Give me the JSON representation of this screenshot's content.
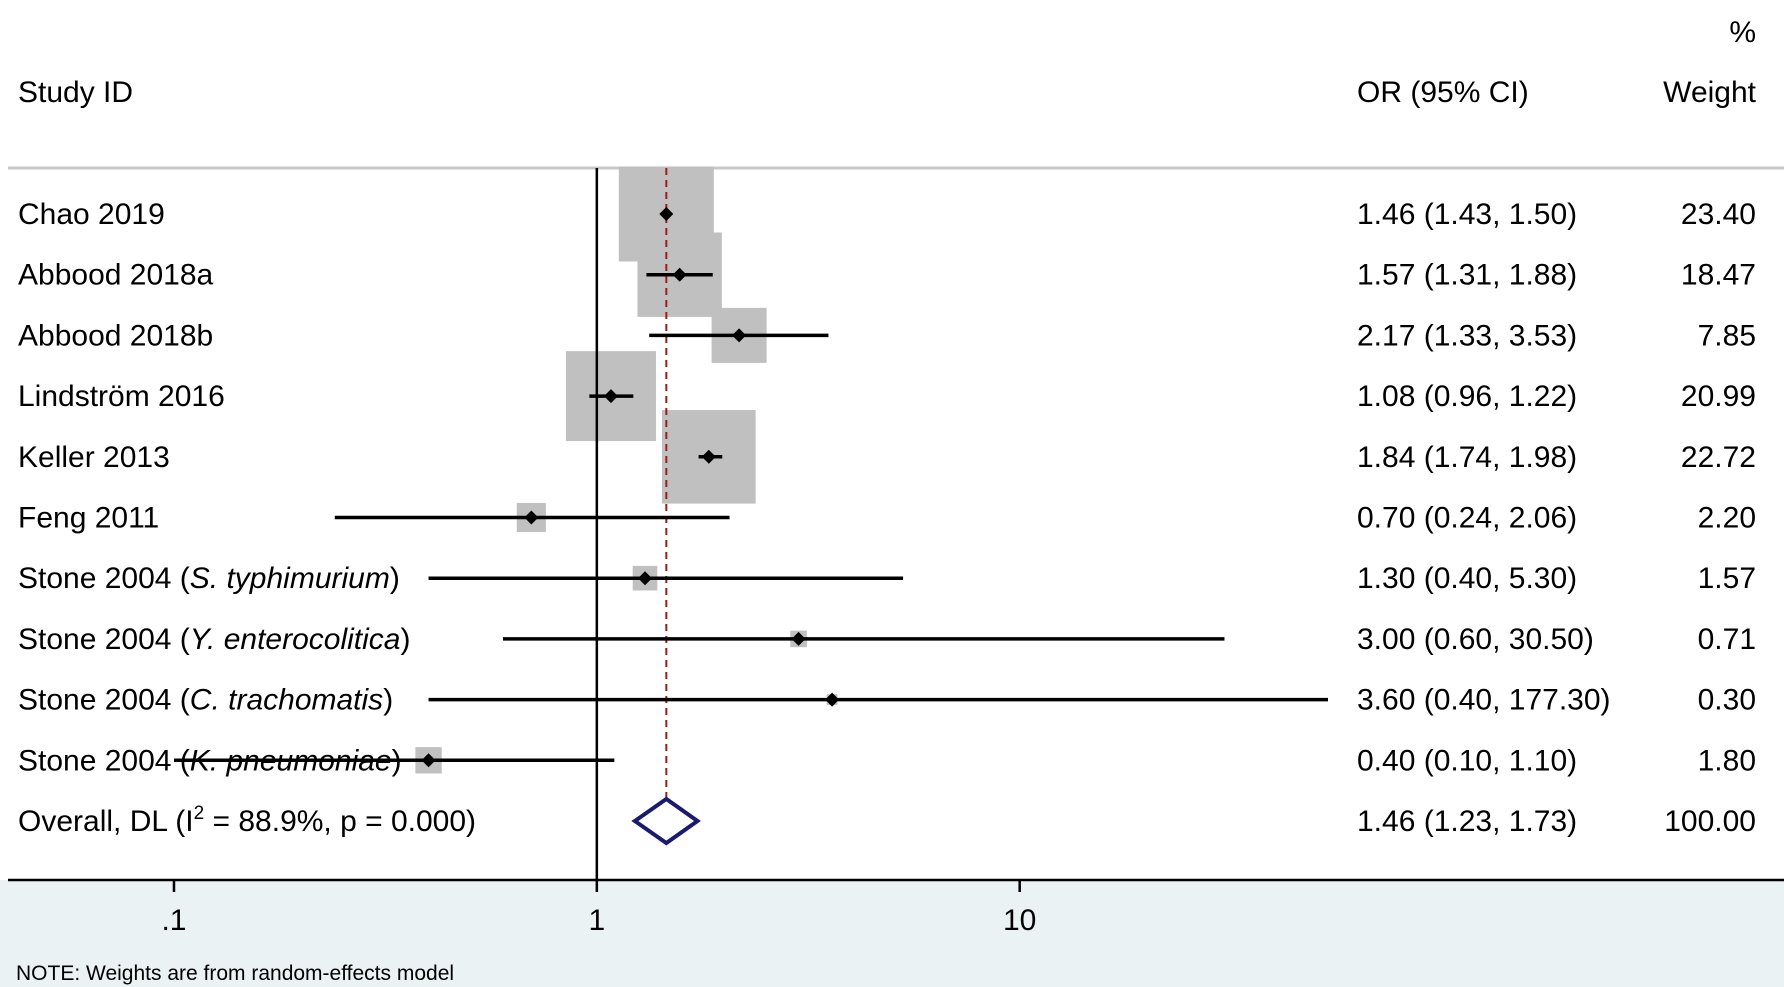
{
  "header": {
    "study_col": "Study ID",
    "or_col": "OR (95% CI)",
    "weight_pct": "%",
    "weight_col": "Weight"
  },
  "chart_data": {
    "type": "forest",
    "scale": "log",
    "xlim": [
      0.0405,
      53.6
    ],
    "null_line": 1,
    "ticks": [
      {
        "value": 0.1,
        "label": ".1"
      },
      {
        "value": 1,
        "label": "1"
      },
      {
        "value": 10,
        "label": "10"
      }
    ],
    "studies": [
      {
        "pre": "Chao 2019",
        "ital": "",
        "post": "",
        "or": 1.46,
        "lo": 1.43,
        "hi": 1.5,
        "or_text": "1.46 (1.43, 1.50)",
        "weight": "23.40",
        "w": 23.4
      },
      {
        "pre": "Abbood 2018a",
        "ital": "",
        "post": "",
        "or": 1.57,
        "lo": 1.31,
        "hi": 1.88,
        "or_text": "1.57 (1.31, 1.88)",
        "weight": "18.47",
        "w": 18.47
      },
      {
        "pre": "Abbood 2018b",
        "ital": "",
        "post": "",
        "or": 2.17,
        "lo": 1.33,
        "hi": 3.53,
        "or_text": "2.17 (1.33, 3.53)",
        "weight": "7.85",
        "w": 7.85
      },
      {
        "pre": "Lindström 2016",
        "ital": "",
        "post": "",
        "or": 1.08,
        "lo": 0.96,
        "hi": 1.22,
        "or_text": "1.08 (0.96, 1.22)",
        "weight": "20.99",
        "w": 20.99
      },
      {
        "pre": "Keller 2013",
        "ital": "",
        "post": "",
        "or": 1.84,
        "lo": 1.74,
        "hi": 1.98,
        "or_text": "1.84 (1.74, 1.98)",
        "weight": "22.72",
        "w": 22.72
      },
      {
        "pre": "Feng 2011",
        "ital": "",
        "post": "",
        "or": 0.7,
        "lo": 0.24,
        "hi": 2.06,
        "or_text": "0.70 (0.24, 2.06)",
        "weight": "2.20",
        "w": 2.2
      },
      {
        "pre": "Stone 2004 (",
        "ital": "S. typhimurium",
        "post": ")",
        "or": 1.3,
        "lo": 0.4,
        "hi": 5.3,
        "or_text": "1.30 (0.40, 5.30)",
        "weight": "1.57",
        "w": 1.57
      },
      {
        "pre": "Stone 2004 (",
        "ital": "Y. enterocolitica",
        "post": ")",
        "or": 3.0,
        "lo": 0.6,
        "hi": 30.5,
        "or_text": "3.00 (0.60, 30.50)",
        "weight": "0.71",
        "w": 0.71
      },
      {
        "pre": "Stone 2004 (",
        "ital": "C. trachomatis",
        "post": ")",
        "or": 3.6,
        "lo": 0.4,
        "hi": 177.3,
        "or_text": "3.60 (0.40, 177.30)",
        "weight": "0.30",
        "w": 0.3
      },
      {
        "pre": "Stone 2004 (",
        "ital": "K. pneumoniae",
        "post": ")",
        "or": 0.4,
        "lo": 0.1,
        "hi": 1.1,
        "or_text": "0.40 (0.10, 1.10)",
        "weight": "1.80",
        "w": 1.8
      }
    ],
    "overall": {
      "label_pre": "Overall, DL (I",
      "label_sup": "2",
      "label_post": " = 88.9%, p = 0.000)",
      "or": 1.46,
      "lo": 1.23,
      "hi": 1.73,
      "or_text": "1.46 (1.23, 1.73)",
      "weight": "100.00"
    },
    "note": "NOTE: Weights are from random-effects model"
  },
  "colors": {
    "box": "#c0c0c0",
    "ci_line": "#000000",
    "null_line": "#000000",
    "pooled_line": "#9b1c1c",
    "diamond": "#1a1a6e",
    "footer_bg": "#eaf2f3",
    "rule": "#c8c8c8"
  }
}
